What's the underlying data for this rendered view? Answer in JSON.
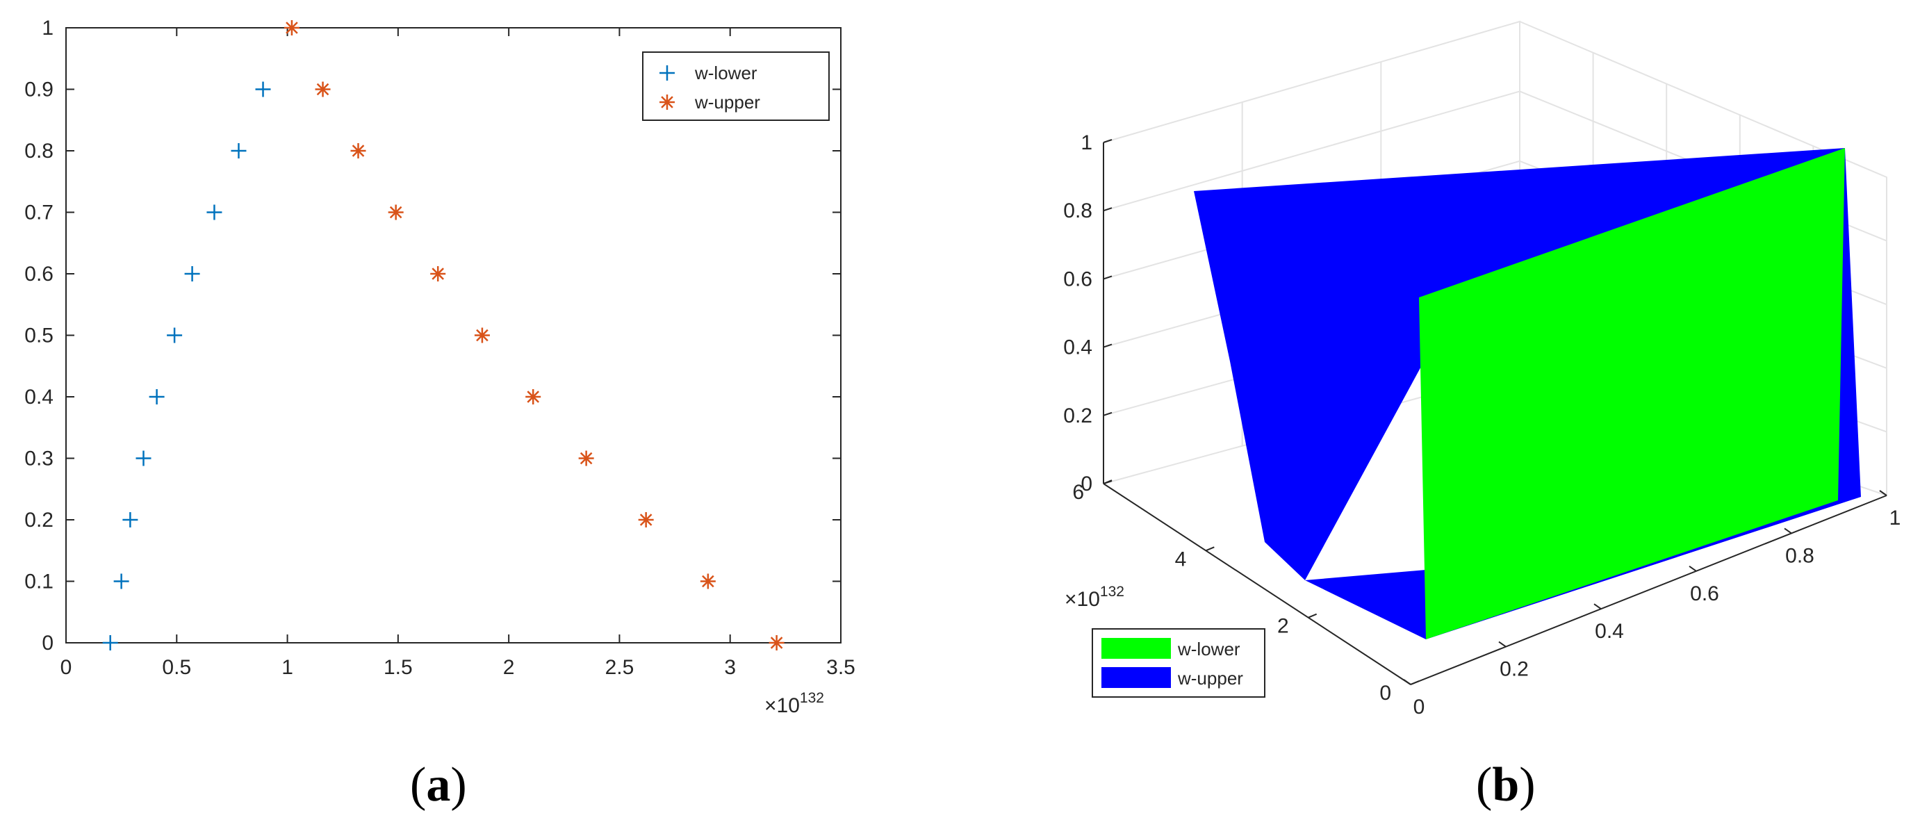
{
  "colors": {
    "lower_marker": "#0072BD",
    "upper_marker": "#D95319",
    "surface_lower": "#00FF00",
    "surface_upper": "#0000FF",
    "axis": "#262626",
    "grid": "#e3e3e3"
  },
  "chart_data": [
    {
      "type": "scatter",
      "panel_label": "a",
      "xlim": [
        0,
        3.5
      ],
      "ylim": [
        0,
        1
      ],
      "x_ticks": [
        0,
        0.5,
        1,
        1.5,
        2,
        2.5,
        3,
        3.5
      ],
      "x_tick_labels": [
        "0",
        "0.5",
        "1",
        "1.5",
        "2",
        "2.5",
        "3",
        "3.5"
      ],
      "y_ticks": [
        0,
        0.1,
        0.2,
        0.3,
        0.4,
        0.5,
        0.6,
        0.7,
        0.8,
        0.9,
        1
      ],
      "y_tick_labels": [
        "0",
        "0.1",
        "0.2",
        "0.3",
        "0.4",
        "0.5",
        "0.6",
        "0.7",
        "0.8",
        "0.9",
        "1"
      ],
      "x_exponent_label": "×10",
      "x_exponent_power": "132",
      "legend_position": "top-right",
      "series": [
        {
          "name": "w-lower",
          "marker": "+",
          "color": "#0072BD",
          "points": [
            [
              0.2,
              0
            ],
            [
              0.25,
              0.1
            ],
            [
              0.29,
              0.2
            ],
            [
              0.35,
              0.3
            ],
            [
              0.41,
              0.4
            ],
            [
              0.49,
              0.5
            ],
            [
              0.57,
              0.6
            ],
            [
              0.67,
              0.7
            ],
            [
              0.78,
              0.8
            ],
            [
              0.89,
              0.9
            ]
          ]
        },
        {
          "name": "w-upper",
          "marker": "*",
          "color": "#D95319",
          "points": [
            [
              1.02,
              1.0
            ],
            [
              1.16,
              0.9
            ],
            [
              1.32,
              0.8
            ],
            [
              1.49,
              0.7
            ],
            [
              1.68,
              0.6
            ],
            [
              1.88,
              0.5
            ],
            [
              2.11,
              0.4
            ],
            [
              2.35,
              0.3
            ],
            [
              2.62,
              0.2
            ],
            [
              2.9,
              0.1
            ],
            [
              3.21,
              0
            ]
          ]
        }
      ]
    },
    {
      "type": "surface3d",
      "panel_label": "b",
      "x_ticks_labels": [
        "0",
        "0.2",
        "0.4",
        "0.6",
        "0.8",
        "1"
      ],
      "y_ticks_labels": [
        "0",
        "2",
        "4",
        "6"
      ],
      "z_ticks_labels": [
        "0",
        "0.2",
        "0.4",
        "0.6",
        "0.8",
        "1"
      ],
      "y_exponent_label": "×10",
      "y_exponent_power": "132",
      "xlim": [
        0,
        1
      ],
      "ylim": [
        0,
        6
      ],
      "zlim": [
        0,
        1
      ],
      "legend_position": "bottom-left",
      "series": [
        {
          "name": "w-lower",
          "color": "#00FF00"
        },
        {
          "name": "w-upper",
          "color": "#0000FF"
        }
      ]
    }
  ]
}
